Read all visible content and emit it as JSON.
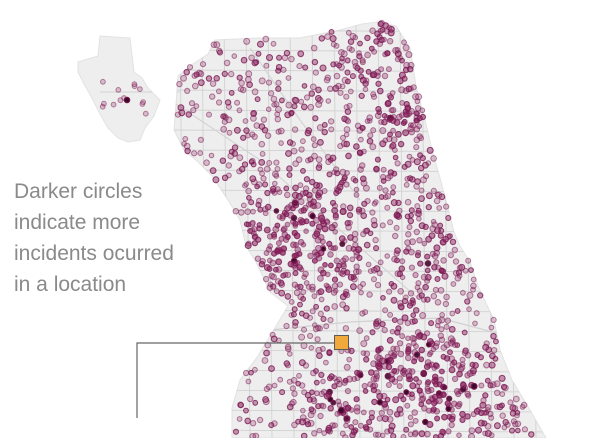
{
  "map": {
    "annotation_lines": [
      "Darker circles",
      "indicate more",
      "incidents ocurred",
      "in a location"
    ],
    "colors": {
      "land": "#eeeeee",
      "land_edge": "#e2e2e2",
      "streets": "#d2d2d2",
      "point_fill": "#8a1f5c",
      "point_stroke": "#7a1a52",
      "point_fill_dark": "#3a0a26",
      "marker": "#f2a93b",
      "leader_line": "#666666",
      "annotation_text": "#8a8a8a"
    },
    "marker_icon": "orange-square-marker"
  }
}
